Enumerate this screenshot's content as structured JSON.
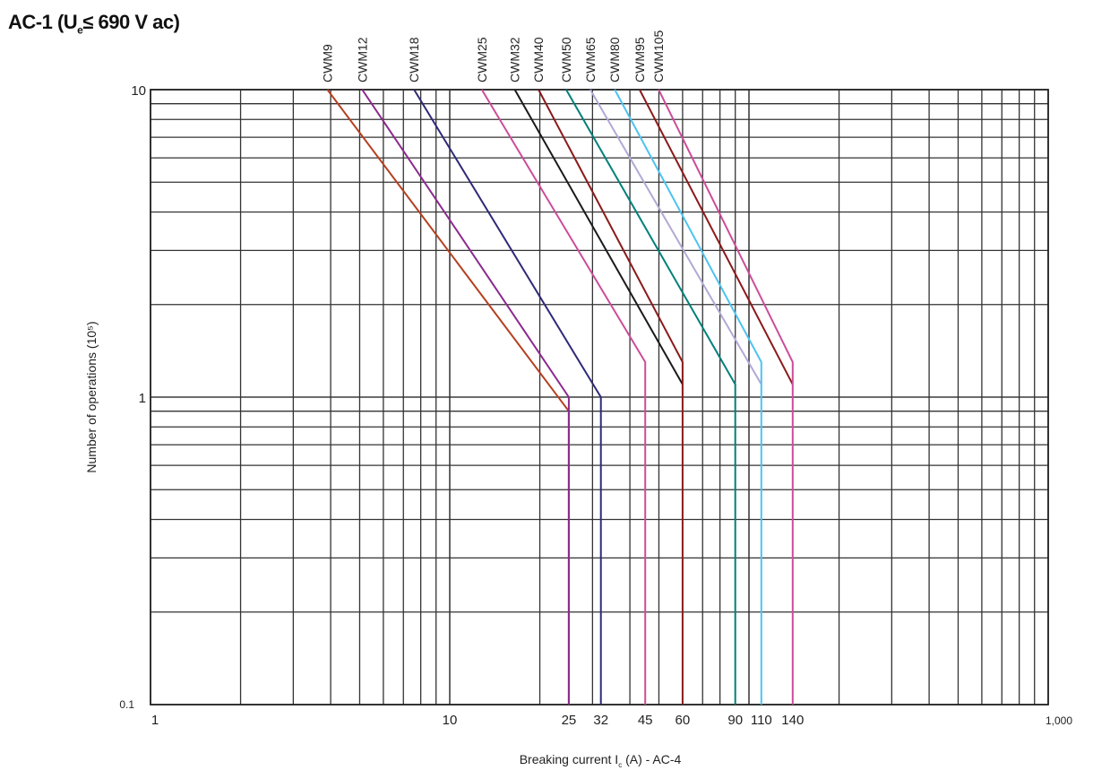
{
  "chart_data": {
    "type": "line",
    "title": "AC-1 (Ue ≤ 690 V ac)",
    "title_parts": {
      "pre": "AC-1 (U",
      "sub": "e",
      "post": "≤ 690 V ac)"
    },
    "xlabel": "Breaking current Ic (A) - AC-4",
    "xlabel_parts": {
      "pre": "Breaking current I",
      "sub": "c",
      "post": " (A) - AC-4"
    },
    "ylabel": "Number of operations (10⁵)",
    "x_scale": "log",
    "y_scale": "log",
    "xlim": [
      1,
      1000
    ],
    "ylim": [
      0.1,
      10
    ],
    "grid": true,
    "x_ticks": [
      {
        "v": 1,
        "label": "1"
      },
      {
        "v": 10,
        "label": "10"
      },
      {
        "v": 25,
        "label": "25"
      },
      {
        "v": 32,
        "label": "32"
      },
      {
        "v": 45,
        "label": "45"
      },
      {
        "v": 60,
        "label": "60"
      },
      {
        "v": 90,
        "label": "90"
      },
      {
        "v": 110,
        "label": "110"
      },
      {
        "v": 140,
        "label": "140"
      },
      {
        "v": 1000,
        "label": "1,000"
      }
    ],
    "y_ticks": [
      {
        "v": 10,
        "label": "10"
      },
      {
        "v": 1,
        "label": "1"
      },
      {
        "v": 0.1,
        "label": "0.1"
      }
    ],
    "series": [
      {
        "name": "CWM9",
        "color": "#b5401f",
        "points": [
          [
            3.9,
            10
          ],
          [
            25,
            0.9
          ],
          [
            25,
            0.1
          ]
        ]
      },
      {
        "name": "CWM12",
        "color": "#8a2a8c",
        "points": [
          [
            5.1,
            10
          ],
          [
            25,
            1.0
          ],
          [
            25,
            0.1
          ]
        ]
      },
      {
        "name": "CWM18",
        "color": "#2e2a78",
        "points": [
          [
            7.6,
            10
          ],
          [
            32,
            1.0
          ],
          [
            32,
            0.1
          ]
        ]
      },
      {
        "name": "CWM25",
        "color": "#cc4d9a",
        "points": [
          [
            12.8,
            10
          ],
          [
            45,
            1.3
          ],
          [
            45,
            0.1
          ]
        ]
      },
      {
        "name": "CWM32",
        "color": "#1a1a1a",
        "points": [
          [
            16.5,
            10
          ],
          [
            60,
            1.1
          ]
        ]
      },
      {
        "name": "CWM40",
        "color": "#8b1a1a",
        "points": [
          [
            19.8,
            10
          ],
          [
            60,
            1.3
          ],
          [
            60,
            0.1
          ]
        ]
      },
      {
        "name": "CWM50",
        "color": "#00807a",
        "points": [
          [
            24.5,
            10
          ],
          [
            90,
            1.1
          ],
          [
            90,
            0.1
          ]
        ]
      },
      {
        "name": "CWM65",
        "color": "#b3a8d6",
        "points": [
          [
            29.5,
            10
          ],
          [
            110,
            1.1
          ]
        ]
      },
      {
        "name": "CWM80",
        "color": "#4dc3f0",
        "points": [
          [
            35.6,
            10
          ],
          [
            110,
            1.3
          ],
          [
            110,
            0.1
          ]
        ]
      },
      {
        "name": "CWM95",
        "color": "#8b1a1a",
        "points": [
          [
            43.1,
            10
          ],
          [
            140,
            1.1
          ]
        ]
      },
      {
        "name": "CWM105",
        "color": "#cc4d9a",
        "points": [
          [
            49.9,
            10
          ],
          [
            140,
            1.3
          ],
          [
            140,
            0.1
          ]
        ]
      }
    ]
  }
}
